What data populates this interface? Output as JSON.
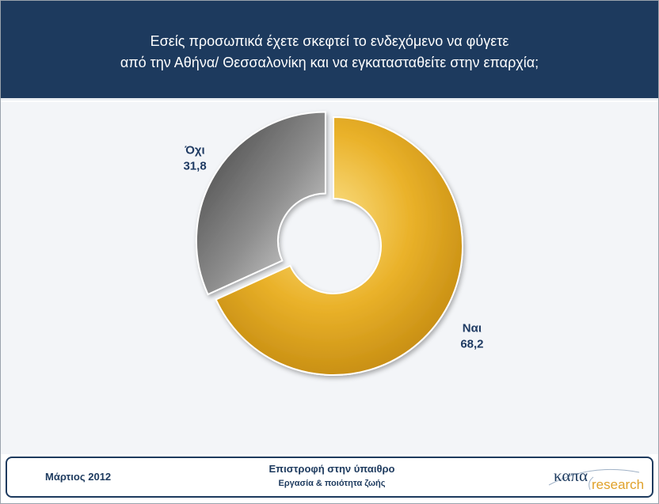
{
  "header": {
    "title_line1": "Εσείς προσωπικά έχετε σκεφτεί το ενδεχόμενο να φύγετε",
    "title_line2": "από την Αθήνα/ Θεσσαλονίκη και να εγκατασταθείτε στην επαρχία;"
  },
  "chart_data": {
    "type": "pie",
    "donut": true,
    "title": "",
    "slices": [
      {
        "label": "Ναι",
        "value": 68.2,
        "value_text": "68,2",
        "color": "#e4a20f"
      },
      {
        "label": "Όχι",
        "value": 31.8,
        "value_text": "31,8",
        "color": "#5f5f5f"
      }
    ],
    "legend": "none",
    "labels_outside": true
  },
  "footer": {
    "date": "Μάρτιος 2012",
    "title": "Επιστροφή στην ύπαιθρο",
    "subtitle": "Εργασία & ποιότητα ζωής",
    "logo_word1": "καπα",
    "logo_word2": "research"
  },
  "colors": {
    "header_bg": "#1d3a5e",
    "label_text": "#1f3b63",
    "logo_accent": "#e0a12a"
  }
}
